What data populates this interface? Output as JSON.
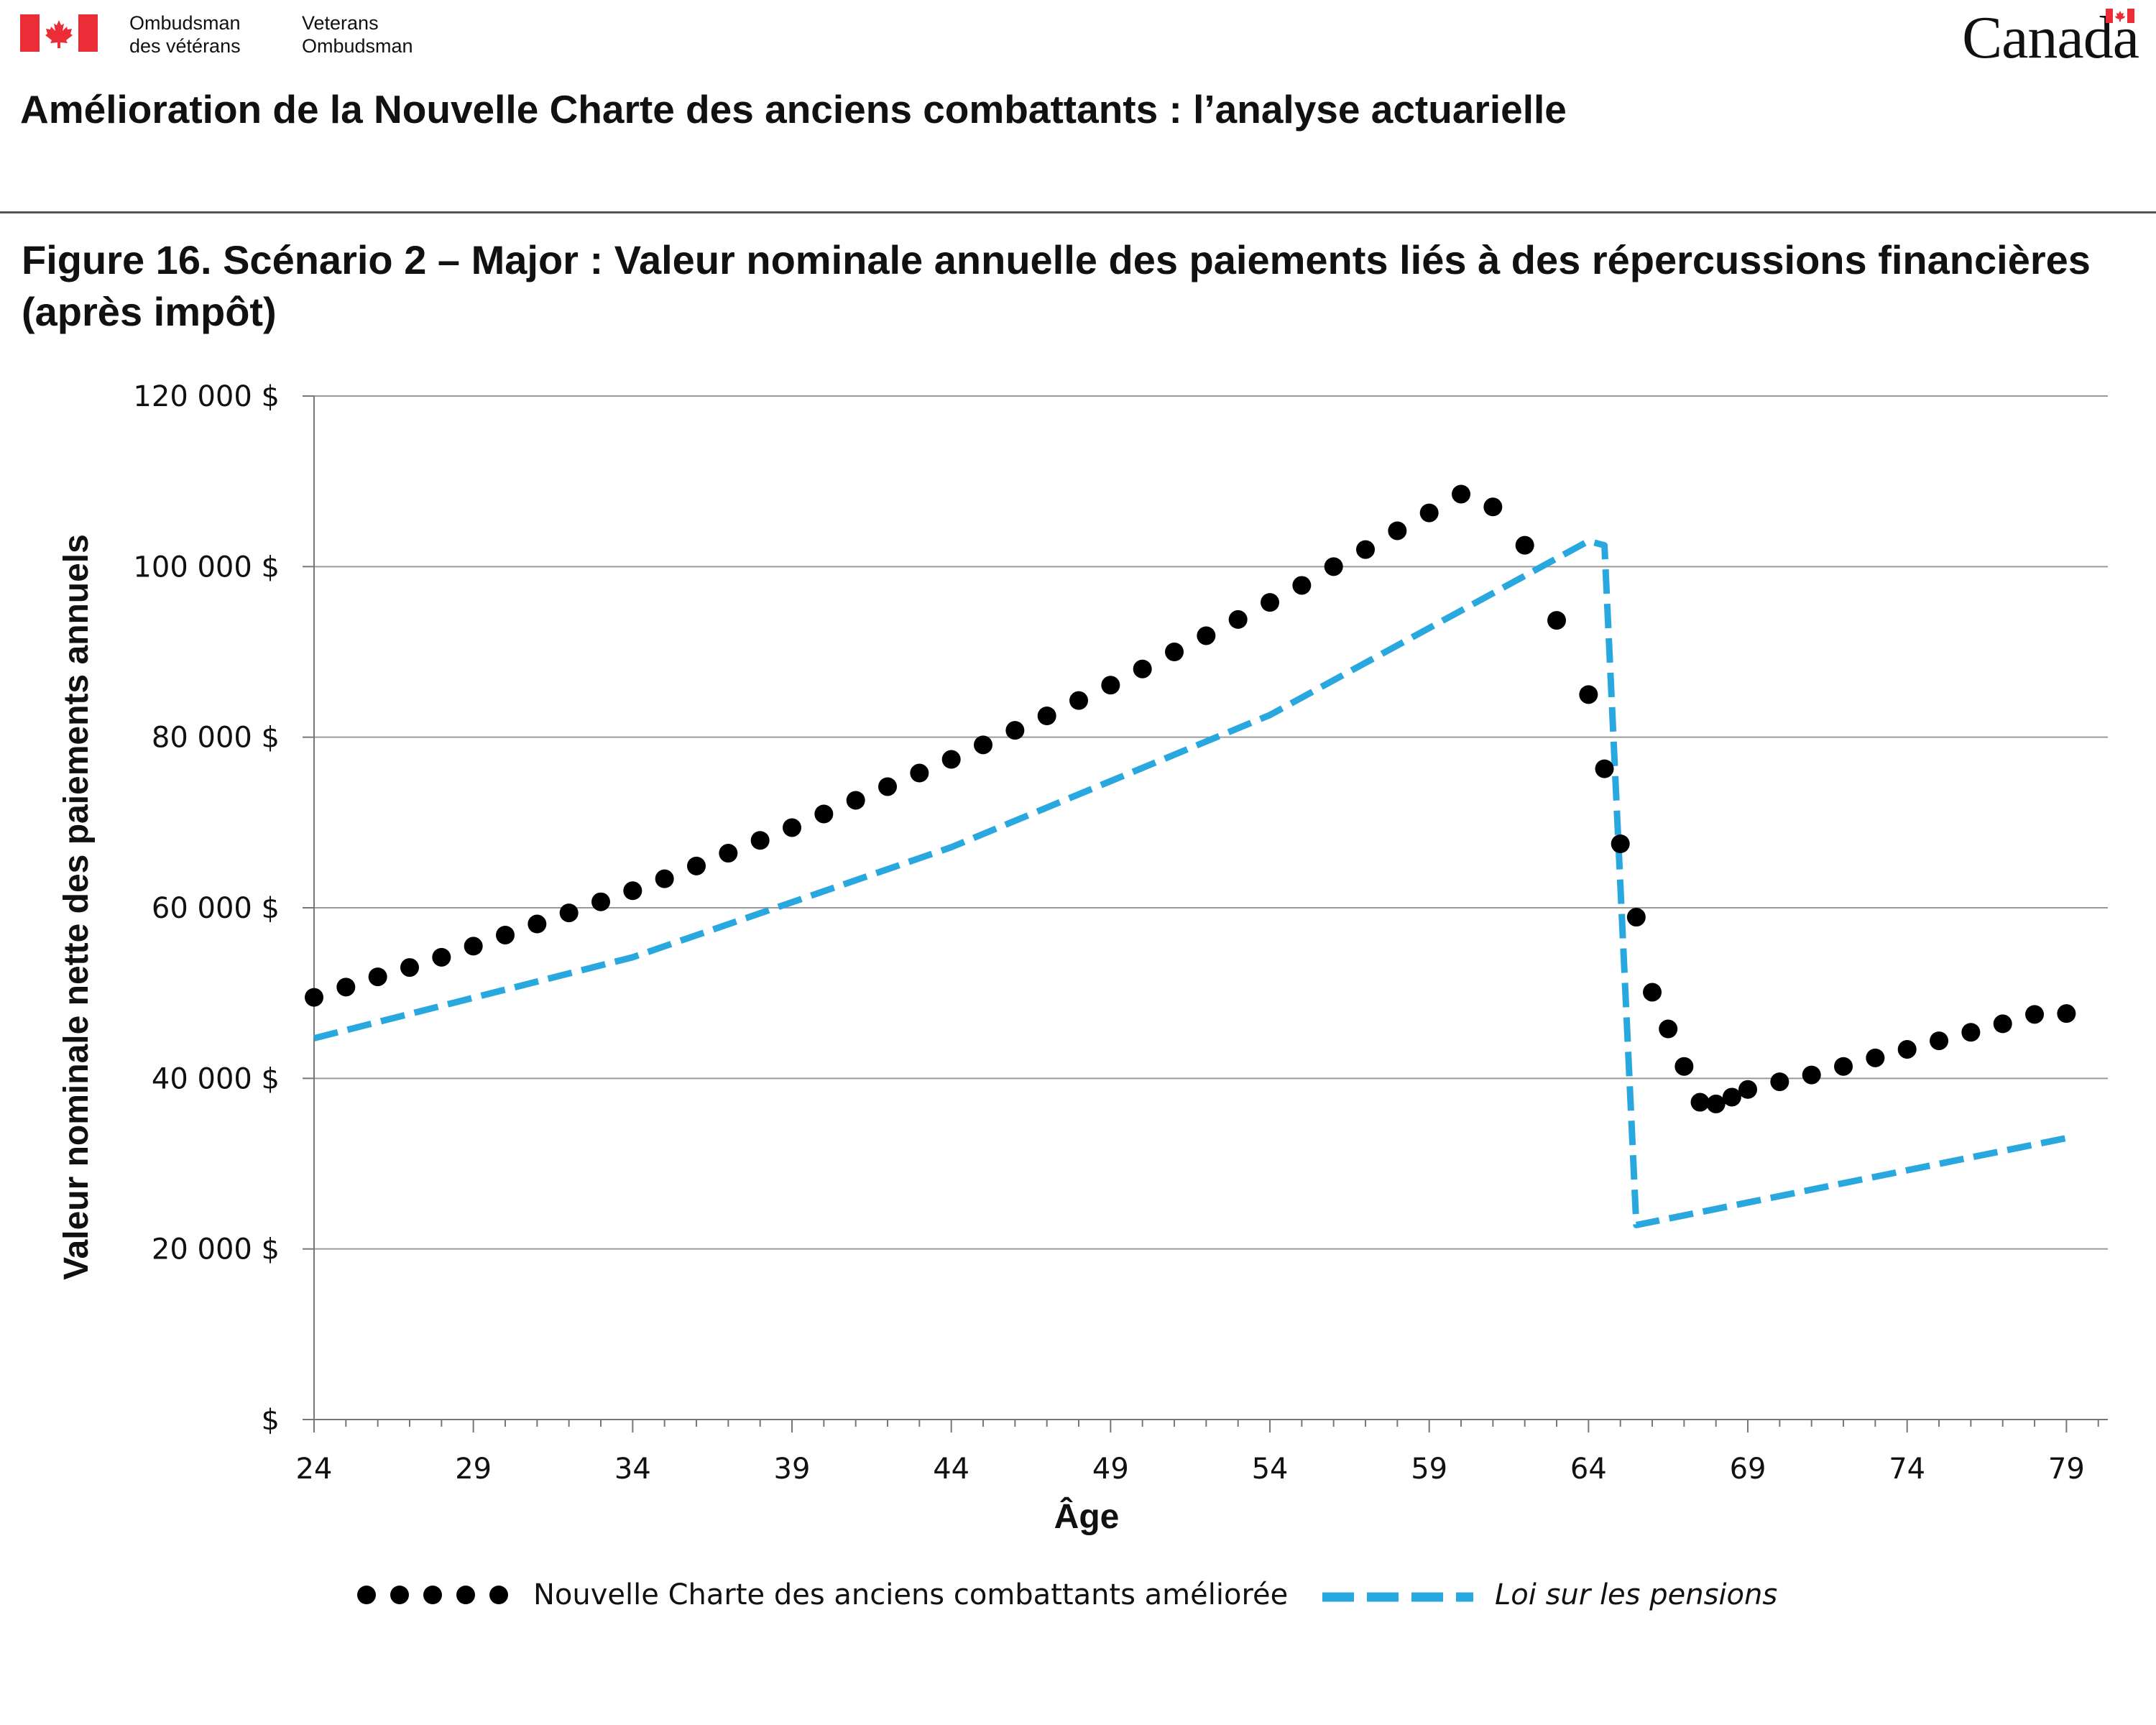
{
  "header": {
    "org_fr": [
      "Ombudsman",
      "des vétérans"
    ],
    "org_en": [
      "Veterans",
      "Ombudsman"
    ],
    "wordmark": "Canada",
    "document_title": "Amélioration de la Nouvelle Charte des anciens combattants : l’analyse actuarielle"
  },
  "colors": {
    "flag_red": "#EB2D37",
    "series_dotted": "#000000",
    "series_dashed": "#29A8E0",
    "grid": "#9a9a9a"
  },
  "chart_data": {
    "type": "line",
    "title": "Figure 16. Scénario 2 – Major : Valeur nominale annuelle des paiements liés à des répercussions financières (après impôt)",
    "xlabel": "Âge",
    "ylabel": "Valeur nominale nette des paiements annuels",
    "xlim": [
      24,
      80.3
    ],
    "ylim": [
      0,
      120000
    ],
    "x_ticks": [
      "24",
      "29",
      "34",
      "39",
      "44",
      "49",
      "54",
      "59",
      "64",
      "69",
      "74",
      "79"
    ],
    "y_ticks": [
      "$",
      "20 000 $",
      "40 000 $",
      "60 000 $",
      "80 000 $",
      "100 000 $",
      "120 000 $"
    ],
    "y_tick_values": [
      0,
      20000,
      40000,
      60000,
      80000,
      100000,
      120000
    ],
    "grid": true,
    "legend_position": "bottom",
    "series": [
      {
        "name": "Nouvelle Charte des anciens combattants améliorée",
        "style": "dotted",
        "x": [
          24,
          25,
          26,
          27,
          28,
          29,
          30,
          31,
          32,
          33,
          34,
          35,
          36,
          37,
          38,
          39,
          40,
          41,
          42,
          43,
          44,
          45,
          46,
          47,
          48,
          49,
          50,
          51,
          52,
          53,
          54,
          55,
          56,
          57,
          58,
          59,
          60,
          61,
          62,
          63,
          64,
          64.5,
          65,
          65.5,
          66,
          66.5,
          67,
          67.5,
          68,
          68.5,
          69,
          70,
          71,
          72,
          73,
          74,
          75,
          76,
          77,
          78,
          79
        ],
        "y": [
          49500,
          50700,
          51900,
          53000,
          54200,
          55500,
          56800,
          58100,
          59400,
          60700,
          62000,
          63400,
          64900,
          66400,
          67900,
          69400,
          71000,
          72600,
          74200,
          75800,
          77400,
          79100,
          80800,
          82500,
          84300,
          86100,
          88000,
          90000,
          91900,
          93800,
          95800,
          97800,
          100000,
          102000,
          104200,
          106300,
          108500,
          107000,
          102500,
          93700,
          85000,
          76300,
          67500,
          58900,
          50100,
          45800,
          41400,
          37200,
          37000,
          37800,
          38700,
          39600,
          40400,
          41400,
          42400,
          43400,
          44400,
          45400,
          46400,
          47500,
          47600
        ]
      },
      {
        "name": "Loi sur les pensions",
        "style": "dashed",
        "x": [
          24,
          34,
          44,
          54,
          64,
          64.5,
          65.5,
          79
        ],
        "y": [
          44700,
          54200,
          67100,
          82600,
          103000,
          102500,
          22800,
          33000
        ]
      }
    ]
  }
}
